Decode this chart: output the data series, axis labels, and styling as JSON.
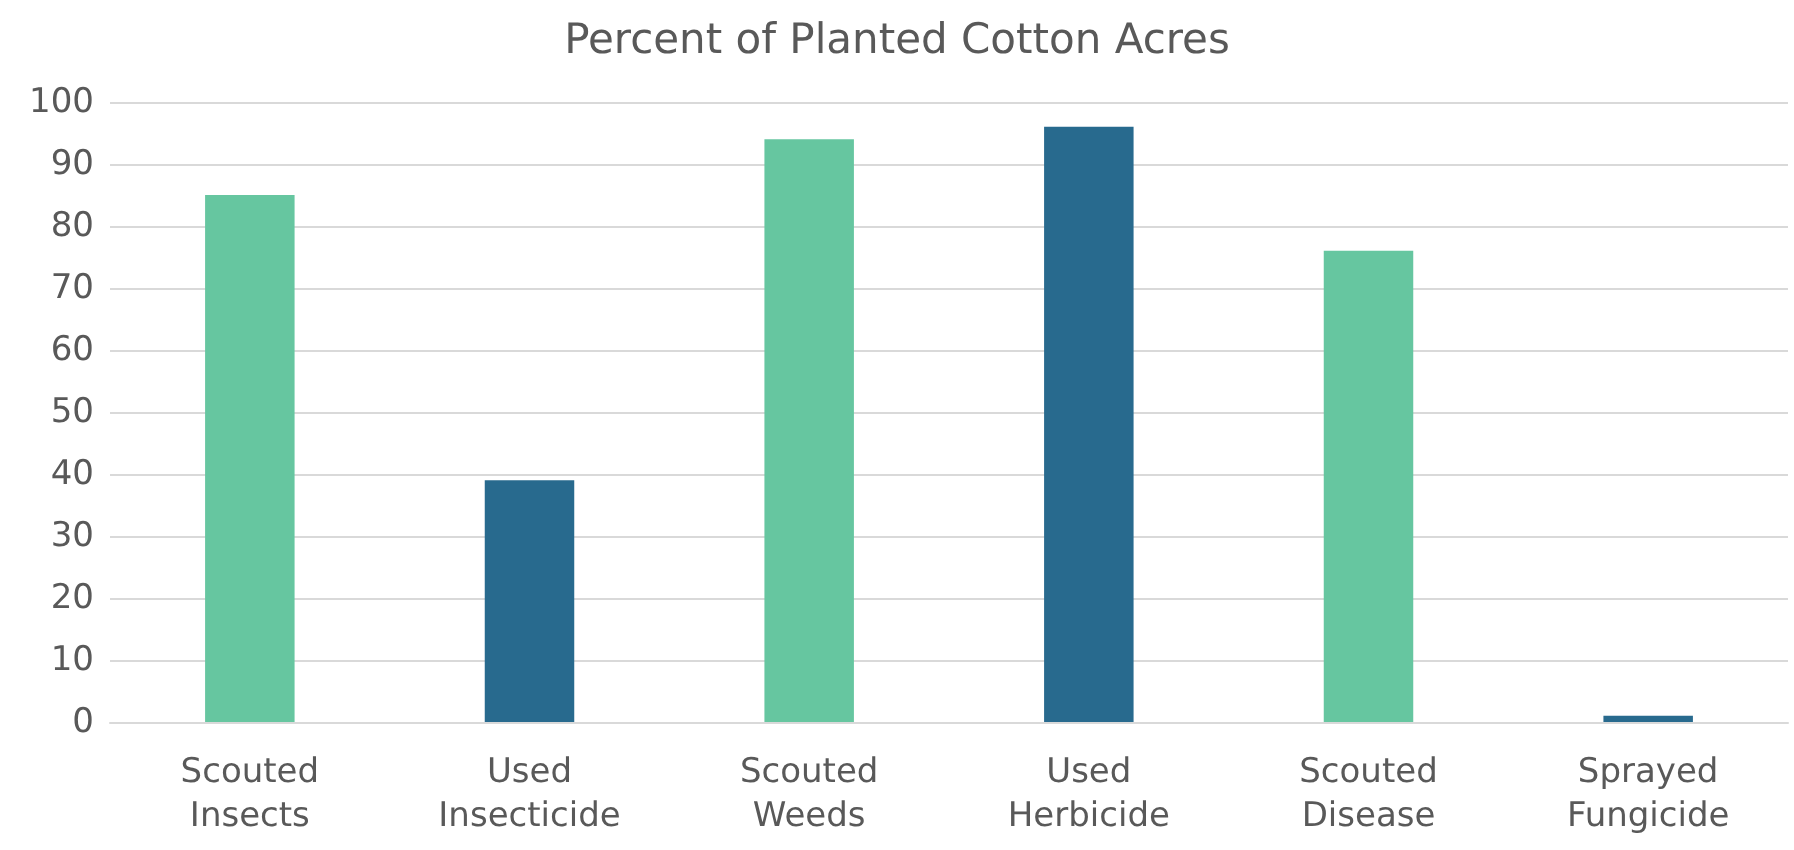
{
  "chart_data": {
    "type": "bar",
    "title": "Percent of Planted Cotton Acres",
    "categories": [
      "Scouted\nInsects",
      "Used\nInsecticide",
      "Scouted\nWeeds",
      "Used\nHerbicide",
      "Scouted\nDisease",
      "Sprayed\nFungicide"
    ],
    "values": [
      85,
      39,
      94,
      96,
      76,
      1
    ],
    "colors": [
      "#66c6a0",
      "#286a8e",
      "#66c6a0",
      "#286a8e",
      "#66c6a0",
      "#286a8e"
    ],
    "ylim": [
      0,
      100
    ],
    "yticks": [
      0,
      10,
      20,
      30,
      40,
      50,
      60,
      70,
      80,
      90,
      100
    ],
    "grid": "y"
  }
}
